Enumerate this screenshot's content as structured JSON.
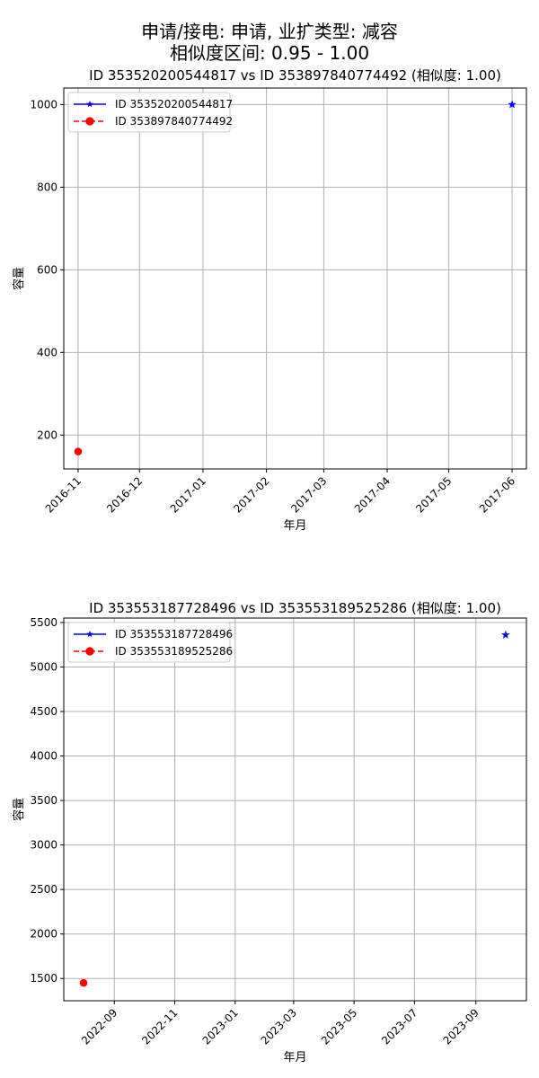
{
  "suptitle": [
    "申请/接电: 申请, 业扩类型: 减容",
    "相似度区间: 0.95 - 1.00"
  ],
  "chart_data": [
    {
      "type": "scatter",
      "title": "ID 353520200544817 vs ID 353897840774492 (相似度: 1.00)",
      "xlabel": "年月",
      "ylabel": "容量",
      "x_ticks": [
        "2016-11",
        "2016-12",
        "2017-01",
        "2017-02",
        "2017-03",
        "2017-04",
        "2017-05",
        "2017-06"
      ],
      "x_range": [
        "2016-10-25",
        "2017-06-08"
      ],
      "y_ticks": [
        200,
        400,
        600,
        800,
        1000
      ],
      "y_range": [
        118,
        1040
      ],
      "grid": true,
      "legend_position": "upper-left",
      "series": [
        {
          "name": "ID 353520200544817",
          "color": "#0000ff",
          "marker": "star",
          "line": "solid",
          "points": [
            {
              "x": "2017-06-01",
              "y": 1000
            }
          ]
        },
        {
          "name": "ID 353897840774492",
          "color": "#ff0000",
          "marker": "circle",
          "line": "dashed",
          "points": [
            {
              "x": "2016-11-01",
              "y": 160
            }
          ]
        }
      ]
    },
    {
      "type": "scatter",
      "title": "ID 353553187728496 vs ID 353553189525286 (相似度: 1.00)",
      "xlabel": "年月",
      "ylabel": "容量",
      "x_ticks": [
        "2022-09",
        "2022-11",
        "2023-01",
        "2023-03",
        "2023-05",
        "2023-07",
        "2023-09"
      ],
      "x_range": [
        "2022-07-12",
        "2023-10-22"
      ],
      "y_ticks": [
        1500,
        2000,
        2500,
        3000,
        3500,
        4000,
        4500,
        5000,
        5500
      ],
      "y_range": [
        1250,
        5550
      ],
      "grid": true,
      "legend_position": "upper-left",
      "series": [
        {
          "name": "ID 353553187728496",
          "color": "#0000ff",
          "marker": "star",
          "line": "solid",
          "points": [
            {
              "x": "2023-10-01",
              "y": 5360
            }
          ]
        },
        {
          "name": "ID 353553189525286",
          "color": "#ff0000",
          "marker": "circle",
          "line": "dashed",
          "points": [
            {
              "x": "2022-08-01",
              "y": 1450
            }
          ]
        }
      ]
    }
  ]
}
